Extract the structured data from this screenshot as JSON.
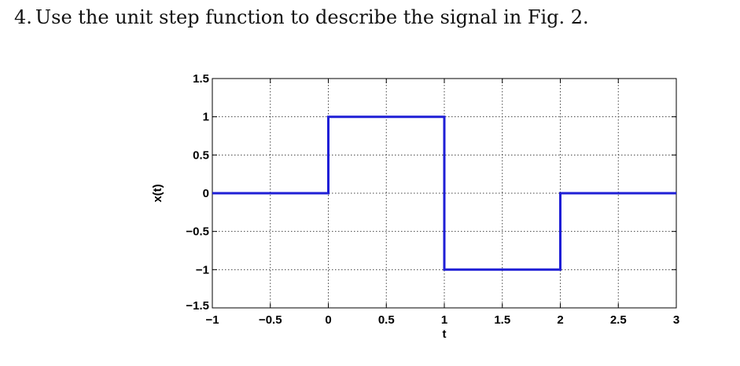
{
  "question": {
    "number": "4.",
    "text": "Use the unit step function to describe the signal in Fig. 2."
  },
  "chart_data": {
    "type": "line",
    "xlabel": "t",
    "ylabel": "x(t)",
    "xlim": [
      -1,
      3
    ],
    "ylim": [
      -1.5,
      1.5
    ],
    "xticks": [
      -1,
      -0.5,
      0,
      0.5,
      1,
      1.5,
      2,
      2.5,
      3
    ],
    "xtick_labels": [
      "−1",
      "−0.5",
      "0",
      "0.5",
      "1",
      "1.5",
      "2",
      "2.5",
      "3"
    ],
    "yticks": [
      1.5,
      1,
      0.5,
      0,
      -0.5,
      -1,
      -1.5
    ],
    "ytick_labels": [
      "1.5",
      "1",
      "0.5",
      "0",
      "−0.5",
      "−1",
      "−1.5"
    ],
    "grid": true,
    "line_color": "#1f1fd6",
    "series": [
      {
        "x": [
          -1,
          0,
          0,
          1,
          1,
          2,
          2,
          3
        ],
        "y": [
          0,
          0,
          1,
          1,
          -1,
          -1,
          0,
          0
        ]
      }
    ]
  }
}
